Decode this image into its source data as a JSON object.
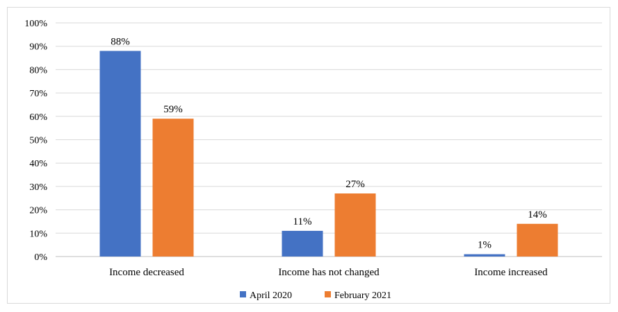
{
  "chart_data": {
    "type": "bar",
    "categories": [
      "Income decreased",
      "Income has not changed",
      "Income increased"
    ],
    "series": [
      {
        "name": "April 2020",
        "values": [
          88,
          11,
          1
        ],
        "labels": [
          "88%",
          "11%",
          "1%"
        ],
        "color": "#4472c4"
      },
      {
        "name": "February 2021",
        "values": [
          59,
          27,
          14
        ],
        "labels": [
          "59%",
          "27%",
          "14%"
        ],
        "color": "#ed7d31"
      }
    ],
    "ylim": [
      0,
      100
    ],
    "yticks": [
      "0%",
      "10%",
      "20%",
      "30%",
      "40%",
      "50%",
      "60%",
      "70%",
      "80%",
      "90%",
      "100%"
    ],
    "grid": true,
    "legend_position": "bottom"
  }
}
